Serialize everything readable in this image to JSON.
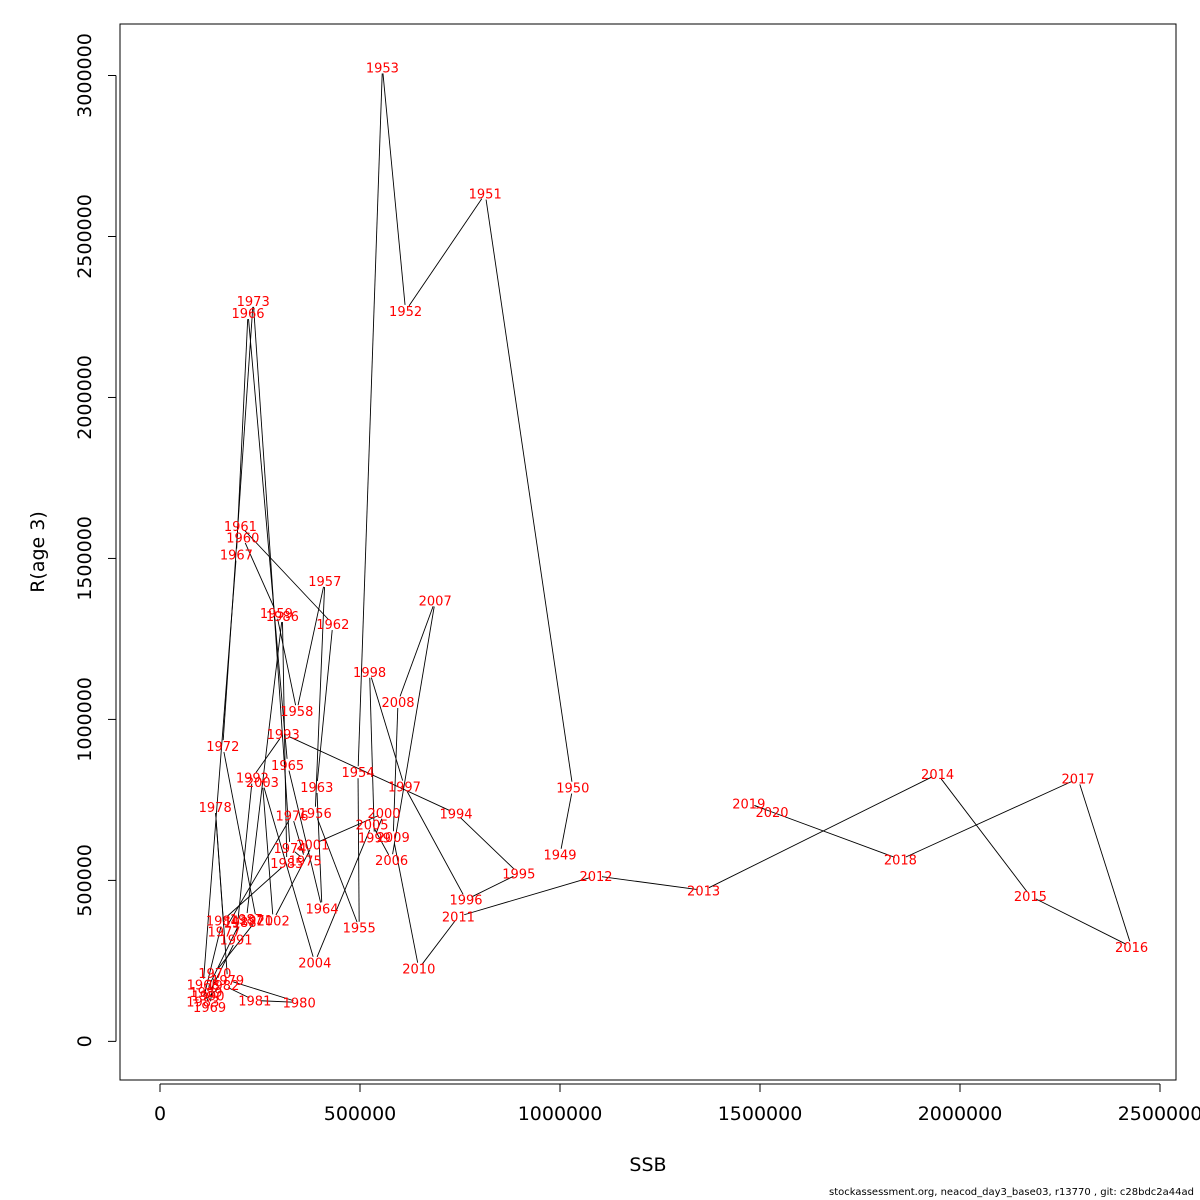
{
  "chart_data": {
    "type": "line",
    "xlabel": "SSB",
    "ylabel": "R(age 3)",
    "xlim": [
      -100000,
      2540000
    ],
    "ylim": [
      -120000,
      3160000
    ],
    "xticks": [
      0,
      500000,
      1000000,
      1500000,
      2000000,
      2500000
    ],
    "xtick_labels": [
      "0",
      "500000",
      "1000000",
      "1500000",
      "2000000",
      "2500000"
    ],
    "yticks": [
      0,
      500000,
      1000000,
      1500000,
      2000000,
      2500000,
      3000000
    ],
    "ytick_labels": [
      "0",
      "500000",
      "1000000",
      "1500000",
      "2000000",
      "2500000",
      "3000000"
    ],
    "point_label_color": "#ff0000",
    "line_color": "#000000",
    "points": [
      {
        "year": "1949",
        "x": 1000000,
        "y": 580000
      },
      {
        "year": "1950",
        "x": 1032000,
        "y": 788000
      },
      {
        "year": "1951",
        "x": 813000,
        "y": 2633000
      },
      {
        "year": "1952",
        "x": 614000,
        "y": 2269000
      },
      {
        "year": "1953",
        "x": 556000,
        "y": 3025000
      },
      {
        "year": "1954",
        "x": 495000,
        "y": 836000
      },
      {
        "year": "1955",
        "x": 498000,
        "y": 353000
      },
      {
        "year": "1956",
        "x": 388000,
        "y": 710000
      },
      {
        "year": "1957",
        "x": 412000,
        "y": 1430000
      },
      {
        "year": "1958",
        "x": 342000,
        "y": 1026000
      },
      {
        "year": "1959",
        "x": 291000,
        "y": 1331000
      },
      {
        "year": "1960",
        "x": 207000,
        "y": 1565000
      },
      {
        "year": "1961",
        "x": 201000,
        "y": 1601000
      },
      {
        "year": "1962",
        "x": 432000,
        "y": 1296000
      },
      {
        "year": "1963",
        "x": 392000,
        "y": 790000
      },
      {
        "year": "1964",
        "x": 405000,
        "y": 413000
      },
      {
        "year": "1965",
        "x": 319000,
        "y": 859000
      },
      {
        "year": "1966",
        "x": 220000,
        "y": 2262000
      },
      {
        "year": "1967",
        "x": 191000,
        "y": 1512000
      },
      {
        "year": "1968",
        "x": 108000,
        "y": 176000
      },
      {
        "year": "1969",
        "x": 124000,
        "y": 106000
      },
      {
        "year": "1970",
        "x": 137000,
        "y": 213000
      },
      {
        "year": "1971",
        "x": 241000,
        "y": 377000
      },
      {
        "year": "1972",
        "x": 157000,
        "y": 917000
      },
      {
        "year": "1973",
        "x": 233000,
        "y": 2300000
      },
      {
        "year": "1974",
        "x": 325000,
        "y": 601000
      },
      {
        "year": "1975",
        "x": 363000,
        "y": 562000
      },
      {
        "year": "1976",
        "x": 330000,
        "y": 702000
      },
      {
        "year": "1977",
        "x": 160000,
        "y": 342000
      },
      {
        "year": "1978",
        "x": 138000,
        "y": 728000
      },
      {
        "year": "1979",
        "x": 169000,
        "y": 190000
      },
      {
        "year": "1980",
        "x": 348000,
        "y": 121000
      },
      {
        "year": "1981",
        "x": 237000,
        "y": 127000
      },
      {
        "year": "1982",
        "x": 157000,
        "y": 175000
      },
      {
        "year": "1983",
        "x": 107000,
        "y": 124000
      },
      {
        "year": "1984",
        "x": 156000,
        "y": 375000
      },
      {
        "year": "1985",
        "x": 317000,
        "y": 554000
      },
      {
        "year": "1986",
        "x": 306000,
        "y": 1321000
      },
      {
        "year": "1987",
        "x": 216000,
        "y": 380000
      },
      {
        "year": "1988",
        "x": 200000,
        "y": 370000
      },
      {
        "year": "1989",
        "x": 115000,
        "y": 153000
      },
      {
        "year": "1990",
        "x": 120000,
        "y": 143000
      },
      {
        "year": "1991",
        "x": 190000,
        "y": 316000
      },
      {
        "year": "1992",
        "x": 231000,
        "y": 819000
      },
      {
        "year": "1993",
        "x": 308000,
        "y": 955000
      },
      {
        "year": "1994",
        "x": 740000,
        "y": 708000
      },
      {
        "year": "1995",
        "x": 897000,
        "y": 521000
      },
      {
        "year": "1996",
        "x": 765000,
        "y": 440000
      },
      {
        "year": "1997",
        "x": 611000,
        "y": 792000
      },
      {
        "year": "1998",
        "x": 524000,
        "y": 1148000
      },
      {
        "year": "1999",
        "x": 536000,
        "y": 633000
      },
      {
        "year": "2000",
        "x": 560000,
        "y": 709000
      },
      {
        "year": "2001",
        "x": 382000,
        "y": 612000
      },
      {
        "year": "2002",
        "x": 283000,
        "y": 376000
      },
      {
        "year": "2003",
        "x": 256000,
        "y": 806000
      },
      {
        "year": "2004",
        "x": 387000,
        "y": 245000
      },
      {
        "year": "2005",
        "x": 530000,
        "y": 674000
      },
      {
        "year": "2006",
        "x": 579000,
        "y": 563000
      },
      {
        "year": "2007",
        "x": 688000,
        "y": 1369000
      },
      {
        "year": "2008",
        "x": 595000,
        "y": 1054000
      },
      {
        "year": "2009",
        "x": 583000,
        "y": 634000
      },
      {
        "year": "2010",
        "x": 647000,
        "y": 226000
      },
      {
        "year": "2011",
        "x": 746000,
        "y": 388000
      },
      {
        "year": "2012",
        "x": 1090000,
        "y": 514000
      },
      {
        "year": "2013",
        "x": 1359000,
        "y": 469000
      },
      {
        "year": "2014",
        "x": 1944000,
        "y": 830000
      },
      {
        "year": "2015",
        "x": 2176000,
        "y": 451000
      },
      {
        "year": "2016",
        "x": 2429000,
        "y": 293000
      },
      {
        "year": "2017",
        "x": 2295000,
        "y": 816000
      },
      {
        "year": "2018",
        "x": 1851000,
        "y": 565000
      },
      {
        "year": "2019",
        "x": 1472000,
        "y": 739000
      },
      {
        "year": "2020",
        "x": 1530000,
        "y": 713000
      }
    ]
  },
  "footer": {
    "text": "stockassessment.org, neacod_day3_base03, r13770 , git: c28bdc2a44ad"
  }
}
